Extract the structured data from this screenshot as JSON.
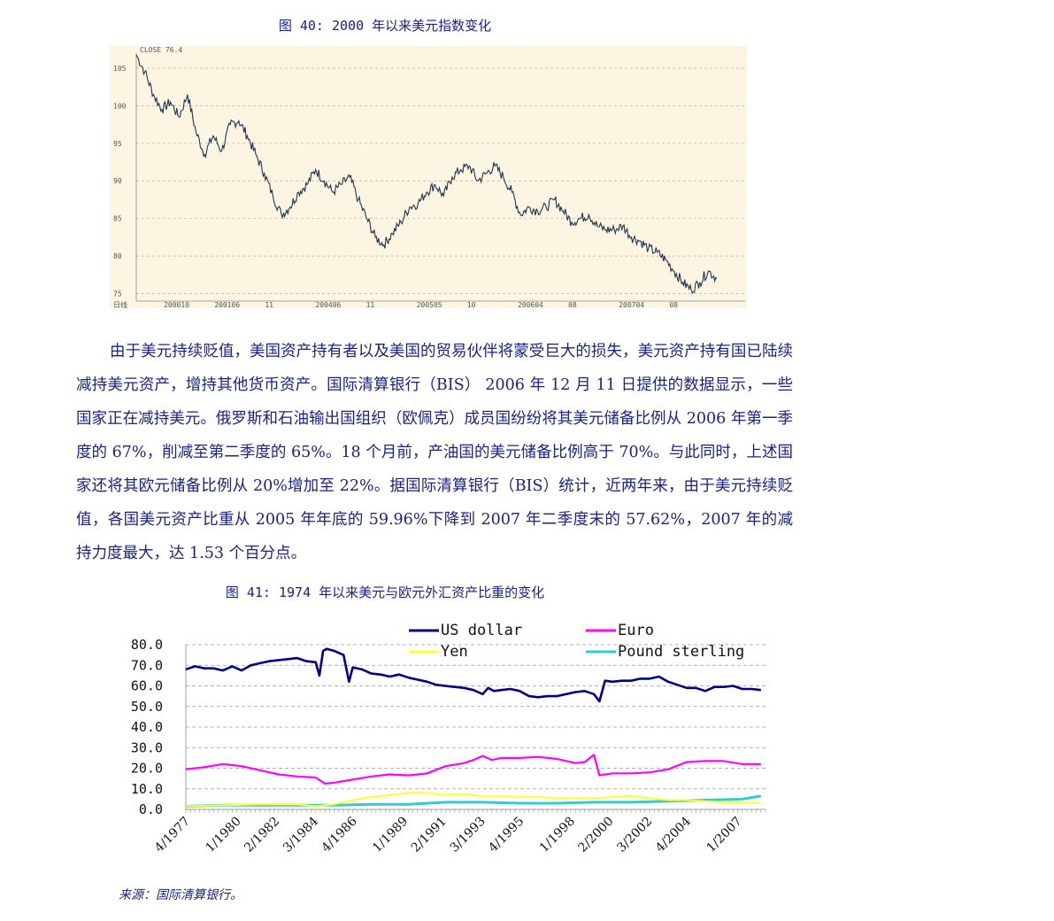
{
  "figures": {
    "fig40_title": "图 40: 2000 年以来美元指数变化",
    "fig41_title": "图 41: 1974 年以来美元与欧元外汇资产比重的变化"
  },
  "body": {
    "paragraph": "由于美元持续贬值，美国资产持有者以及美国的贸易伙伴将蒙受巨大的损失，美元资产持有国已陆续减持美元资产，增持其他货币资产。国际清算银行（BIS） 2006 年 12 月 11 日提供的数据显示，一些国家正在减持美元。俄罗斯和石油输出国组织（欧佩克）成员国纷纷将其美元储备比例从 2006 年第一季度的 67%，削减至第二季度的 65%。18 个月前，产油国的美元储备比例高于 70%。与此同时，上述国家还将其欧元储备比例从 20%增加至 22%。据国际清算银行（BIS）统计，近两年来，由于美元持续贬值，各国美元资产比重从 2005 年年底的 59.96%下降到 2007 年二季度末的 57.62%，2007 年的减持力度最大，达 1.53 个百分点。"
  },
  "source": "来源：国际清算银行。",
  "chart_data": [
    {
      "type": "line",
      "title": "",
      "corner_label": "CLOSE 76.4",
      "ylim": [
        74,
        107
      ],
      "y_ticks": [
        75,
        80,
        85,
        90,
        95,
        100,
        105
      ],
      "x_ticks": [
        "日线",
        "200010",
        "200106",
        "11",
        "200406",
        "11",
        "200505",
        "10",
        "200604",
        "08",
        "200704",
        "08"
      ],
      "grid": true,
      "background": "#fbf5e1",
      "line_color": "#1f3550",
      "series": [
        {
          "values": [
            106.8,
            104.5,
            101.5,
            99.5,
            100.5,
            98.5,
            101.5,
            96.5,
            93.5,
            96.0,
            94.0,
            97.5,
            98.0,
            96.0,
            93.5,
            91.0,
            88.0,
            85.5,
            86.5,
            88.5,
            89.5,
            91.5,
            90.0,
            88.5,
            89.5,
            90.5,
            87.5,
            85.0,
            82.5,
            81.5,
            83.0,
            84.5,
            86.5,
            87.0,
            88.5,
            89.5,
            88.0,
            90.5,
            91.5,
            92.0,
            90.0,
            91.0,
            92.0,
            90.5,
            88.5,
            85.5,
            86.5,
            86.0,
            86.5,
            87.5,
            86.0,
            84.5,
            85.0,
            85.5,
            84.0,
            83.5,
            83.5,
            84.0,
            82.5,
            82.0,
            81.0,
            80.5,
            79.5,
            78.0,
            76.5,
            75.5,
            76.5,
            78.0,
            77.0
          ]
        }
      ]
    },
    {
      "type": "line",
      "title": "",
      "ylim": [
        0,
        80
      ],
      "y_ticks": [
        "0.0",
        "10.0",
        "20.0",
        "30.0",
        "40.0",
        "50.0",
        "60.0",
        "70.0",
        "80.0"
      ],
      "x_labels": [
        "4/1977",
        "1/1980",
        "2/1982",
        "3/1984",
        "4/1986",
        "1/1989",
        "2/1991",
        "3/1993",
        "4/1995",
        "1/1998",
        "2/2000",
        "3/2002",
        "4/2004",
        "1/2007"
      ],
      "x_label_positions": [
        1977.25,
        1980.0,
        1982.08,
        1984.17,
        1986.25,
        1989.0,
        1991.08,
        1993.17,
        1995.25,
        1998.0,
        2000.08,
        2002.17,
        2004.25,
        2007.0
      ],
      "x_range": [
        1977.0,
        2008.25
      ],
      "grid": true,
      "legend": "top",
      "series": [
        {
          "name": "US dollar",
          "color": "#000080",
          "x": [
            1977.0,
            1977.5,
            1978.0,
            1978.5,
            1979.0,
            1979.5,
            1980.0,
            1980.5,
            1981.0,
            1981.5,
            1982.0,
            1982.5,
            1983.0,
            1983.5,
            1984.0,
            1984.2,
            1984.4,
            1984.6,
            1985.0,
            1985.5,
            1985.8,
            1986.0,
            1986.5,
            1987.0,
            1987.5,
            1988.0,
            1988.5,
            1989.0,
            1989.5,
            1990.0,
            1990.5,
            1991.0,
            1991.5,
            1992.0,
            1992.5,
            1993.0,
            1993.3,
            1993.6,
            1994.0,
            1994.5,
            1995.0,
            1995.5,
            1996.0,
            1996.5,
            1997.0,
            1997.5,
            1998.0,
            1998.5,
            1999.0,
            1999.3,
            1999.6,
            2000.0,
            2000.5,
            2001.0,
            2001.5,
            2002.0,
            2002.5,
            2003.0,
            2003.5,
            2004.0,
            2004.5,
            2005.0,
            2005.5,
            2006.0,
            2006.5,
            2007.0,
            2007.5,
            2008.0
          ],
          "values": [
            68.0,
            69.5,
            68.5,
            68.5,
            67.5,
            69.5,
            67.5,
            70.0,
            71.0,
            72.0,
            72.5,
            73.0,
            73.5,
            72.0,
            71.5,
            65.0,
            77.0,
            78.0,
            77.0,
            75.0,
            62.0,
            69.0,
            68.0,
            66.0,
            65.5,
            64.5,
            65.5,
            64.0,
            63.0,
            62.0,
            60.5,
            60.0,
            59.5,
            59.0,
            58.0,
            56.0,
            59.0,
            57.5,
            58.0,
            58.5,
            57.5,
            55.0,
            54.5,
            55.0,
            55.0,
            56.0,
            57.0,
            57.5,
            56.0,
            52.5,
            62.5,
            62.0,
            62.5,
            62.5,
            63.5,
            63.5,
            64.5,
            62.0,
            60.5,
            59.0,
            59.0,
            57.5,
            59.5,
            59.5,
            60.0,
            58.5,
            58.5,
            58.0
          ]
        },
        {
          "name": "Euro",
          "color": "#ff00ff",
          "x": [
            1977.0,
            1978.0,
            1979.0,
            1980.0,
            1981.0,
            1982.0,
            1983.0,
            1984.0,
            1984.5,
            1985.0,
            1986.0,
            1987.0,
            1988.0,
            1989.0,
            1990.0,
            1991.0,
            1992.0,
            1992.5,
            1993.0,
            1993.5,
            1994.0,
            1995.0,
            1996.0,
            1997.0,
            1998.0,
            1998.5,
            1999.0,
            1999.3,
            1999.6,
            2000.0,
            2001.0,
            2002.0,
            2003.0,
            2004.0,
            2005.0,
            2006.0,
            2007.0,
            2008.0
          ],
          "values": [
            19.5,
            20.5,
            22.0,
            21.0,
            19.0,
            17.0,
            16.0,
            15.5,
            12.5,
            13.0,
            14.5,
            16.0,
            17.0,
            16.5,
            17.5,
            21.0,
            22.5,
            24.0,
            26.0,
            24.0,
            25.0,
            25.0,
            25.5,
            24.5,
            22.5,
            23.0,
            26.5,
            16.5,
            17.0,
            17.5,
            17.5,
            18.0,
            19.5,
            23.0,
            23.5,
            23.5,
            22.0,
            22.0
          ]
        },
        {
          "name": "Yen",
          "color": "#ffff33",
          "x": [
            1977.0,
            1979.0,
            1981.0,
            1983.0,
            1984.0,
            1985.0,
            1986.0,
            1987.0,
            1988.0,
            1989.0,
            1990.0,
            1991.0,
            1992.0,
            1993.0,
            1994.0,
            1995.0,
            1996.0,
            1997.0,
            1998.0,
            1999.0,
            2000.0,
            2001.0,
            2002.0,
            2003.0,
            2004.0,
            2005.0,
            2006.0,
            2007.0,
            2008.0
          ],
          "values": [
            1.5,
            2.0,
            2.5,
            2.5,
            1.5,
            2.5,
            4.5,
            6.0,
            7.0,
            8.0,
            8.0,
            7.0,
            7.5,
            6.5,
            6.5,
            6.0,
            6.0,
            5.5,
            5.5,
            5.5,
            6.0,
            6.5,
            5.5,
            4.5,
            4.5,
            4.0,
            3.5,
            3.5,
            3.0
          ]
        },
        {
          "name": "Pound sterling",
          "color": "#33cccc",
          "x": [
            1977.0,
            1979.0,
            1981.0,
            1983.0,
            1985.0,
            1987.0,
            1989.0,
            1991.0,
            1993.0,
            1995.0,
            1997.0,
            1999.0,
            2001.0,
            2003.0,
            2005.0,
            2007.0,
            2008.0
          ],
          "values": [
            1.5,
            2.0,
            2.0,
            2.0,
            2.0,
            2.5,
            2.5,
            3.5,
            3.5,
            3.0,
            3.0,
            3.5,
            3.5,
            4.0,
            4.5,
            5.0,
            6.5
          ]
        }
      ]
    }
  ]
}
